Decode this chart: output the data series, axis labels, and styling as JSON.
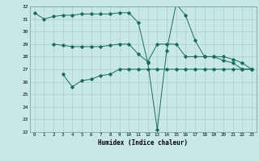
{
  "line1_x": [
    0,
    1,
    2,
    3,
    4,
    5,
    6,
    7,
    8,
    9,
    10,
    11,
    12,
    13,
    14,
    15,
    16,
    17,
    18,
    19,
    20,
    21,
    22,
    23
  ],
  "line1_y": [
    31.5,
    31.0,
    31.2,
    31.3,
    31.3,
    31.4,
    31.4,
    31.4,
    31.4,
    31.5,
    31.5,
    30.7,
    27.5,
    22.2,
    28.5,
    32.2,
    31.3,
    29.3,
    28.0,
    28.0,
    27.7,
    27.5,
    27.0,
    27.0
  ],
  "line2_x": [
    2,
    3,
    4,
    5,
    6,
    7,
    8,
    9,
    10,
    11,
    12,
    13,
    14,
    15,
    16,
    17,
    18,
    19,
    20,
    21,
    22,
    23
  ],
  "line2_y": [
    29.0,
    28.9,
    28.8,
    28.8,
    28.8,
    28.8,
    28.9,
    29.0,
    29.0,
    28.2,
    27.6,
    29.0,
    29.0,
    29.0,
    28.0,
    28.0,
    28.0,
    28.0,
    28.0,
    27.8,
    27.5,
    27.0
  ],
  "line3_x": [
    3,
    4,
    5,
    6,
    7,
    8,
    9,
    10,
    11,
    12,
    13,
    14,
    15,
    16,
    17,
    18,
    19,
    20,
    21,
    22,
    23
  ],
  "line3_y": [
    26.6,
    25.6,
    26.1,
    26.2,
    26.5,
    26.6,
    27.0,
    27.0,
    27.0,
    27.0,
    27.0,
    27.0,
    27.0,
    27.0,
    27.0,
    27.0,
    27.0,
    27.0,
    27.0,
    27.0,
    27.0
  ],
  "line_color": "#1a6b5a",
  "bg_color": "#c8e8e8",
  "grid_color": "#aacece",
  "xlabel": "Humidex (Indice chaleur)",
  "ylim": [
    22,
    32
  ],
  "xlim": [
    -0.5,
    23.5
  ],
  "yticks": [
    22,
    23,
    24,
    25,
    26,
    27,
    28,
    29,
    30,
    31,
    32
  ],
  "xticks": [
    0,
    1,
    2,
    3,
    4,
    5,
    6,
    7,
    8,
    9,
    10,
    11,
    12,
    13,
    14,
    15,
    16,
    17,
    18,
    19,
    20,
    21,
    22,
    23
  ]
}
